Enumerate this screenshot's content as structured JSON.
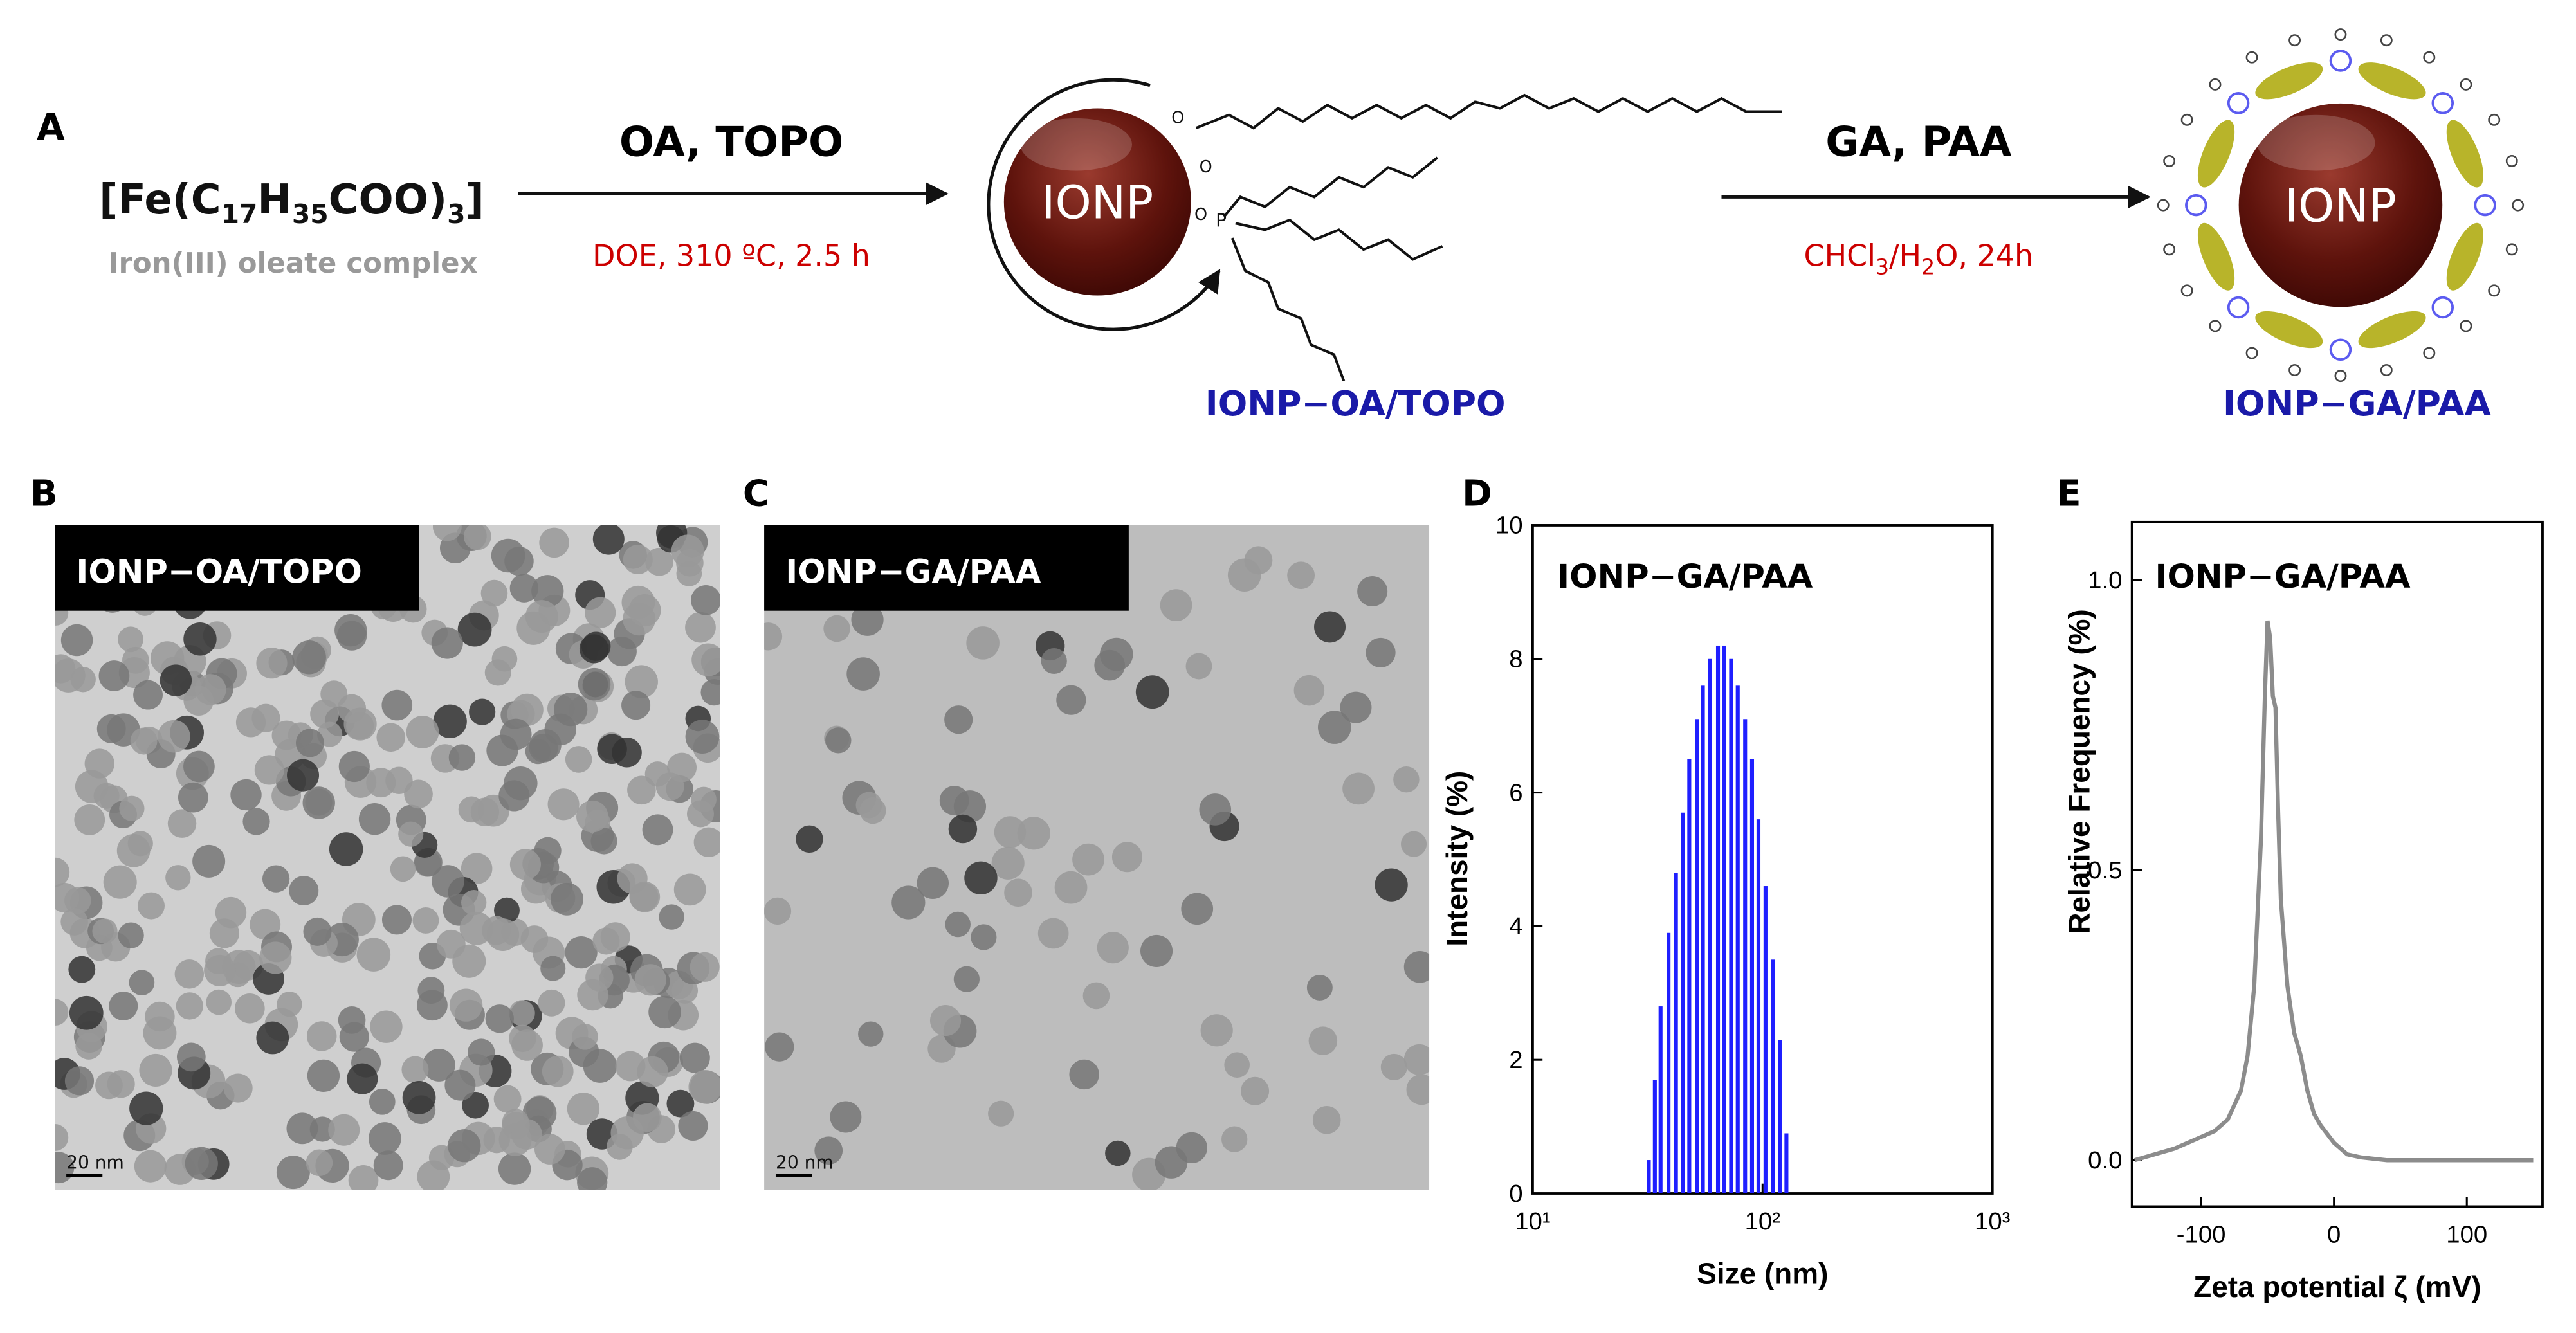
{
  "scheme": {
    "panel_label": "A",
    "precursor_parts": [
      "[Fe(C",
      "17",
      "H",
      "35",
      "COO)",
      "3",
      "]"
    ],
    "precursor_name": "Iron(III) oleate complex",
    "step1_reagents": "OA, TOPO",
    "step1_conditions": "DOE, 310 ºC, 2.5 h",
    "core_label_1": "IONP",
    "product1": "IONP−OA/TOPO",
    "step2_reagents": "GA, PAA",
    "step2_condition_parts": [
      "CHCl",
      "3",
      "/H",
      "2",
      "O, 24h"
    ],
    "core_label_2": "IONP",
    "product2": "IONP−GA/PAA"
  },
  "tem": [
    {
      "panel_label": "B",
      "label": "IONP−OA/TOPO",
      "scale_bar": "20 nm"
    },
    {
      "panel_label": "C",
      "label": "IONP−GA/PAA",
      "scale_bar": "20 nm"
    }
  ],
  "chart_data": [
    {
      "type": "bar",
      "panel_label": "D",
      "annotation": "IONP−GA/PAA",
      "xlabel": "Size (nm)",
      "ylabel": "Intensity (%)",
      "xscale": "log",
      "color": "#1f1fff",
      "x": [
        32,
        34,
        36,
        39,
        42,
        45,
        48,
        52,
        55,
        59,
        64,
        68,
        73,
        78,
        84,
        90,
        96,
        103,
        111,
        119,
        127
      ],
      "values": [
        0.5,
        1.7,
        2.8,
        3.9,
        4.8,
        5.7,
        6.5,
        7.1,
        7.6,
        8.0,
        8.2,
        8.2,
        8.0,
        7.6,
        7.1,
        6.5,
        5.6,
        4.6,
        3.5,
        2.3,
        0.9
      ],
      "xlim": [
        10,
        1000
      ],
      "xticks": [
        {
          "value": 10,
          "label": "10¹"
        },
        {
          "value": 100,
          "label": "10²"
        },
        {
          "value": 1000,
          "label": "10³"
        }
      ],
      "ylim": [
        0,
        10
      ],
      "yticks": [
        0,
        2,
        4,
        6,
        8,
        10
      ]
    },
    {
      "type": "line",
      "panel_label": "E",
      "annotation": "IONP−GA/PAA",
      "xlabel": "Zeta potential ζ (mV)",
      "ylabel": "Relative Frequency (%)",
      "xscale": "linear",
      "color": "#8c8c8c",
      "x": [
        -150,
        -120,
        -100,
        -90,
        -80,
        -70,
        -65,
        -60,
        -55,
        -52,
        -50,
        -48,
        -46,
        -44,
        -42,
        -40,
        -35,
        -30,
        -25,
        -20,
        -15,
        -10,
        0,
        10,
        20,
        40,
        150
      ],
      "values": [
        0,
        0.02,
        0.04,
        0.05,
        0.07,
        0.12,
        0.18,
        0.3,
        0.55,
        0.8,
        0.93,
        0.9,
        0.8,
        0.78,
        0.6,
        0.45,
        0.3,
        0.22,
        0.18,
        0.12,
        0.08,
        0.06,
        0.03,
        0.01,
        0.005,
        0,
        0
      ],
      "xlim": [
        -152,
        157
      ],
      "xticks": [
        -100,
        0,
        100
      ],
      "ylim": [
        -0.08,
        1.1
      ],
      "yticks": [
        {
          "value": 0,
          "label": "0.0"
        },
        {
          "value": 0.5,
          "label": "0.5"
        },
        {
          "value": 1,
          "label": "1.0"
        }
      ]
    }
  ]
}
